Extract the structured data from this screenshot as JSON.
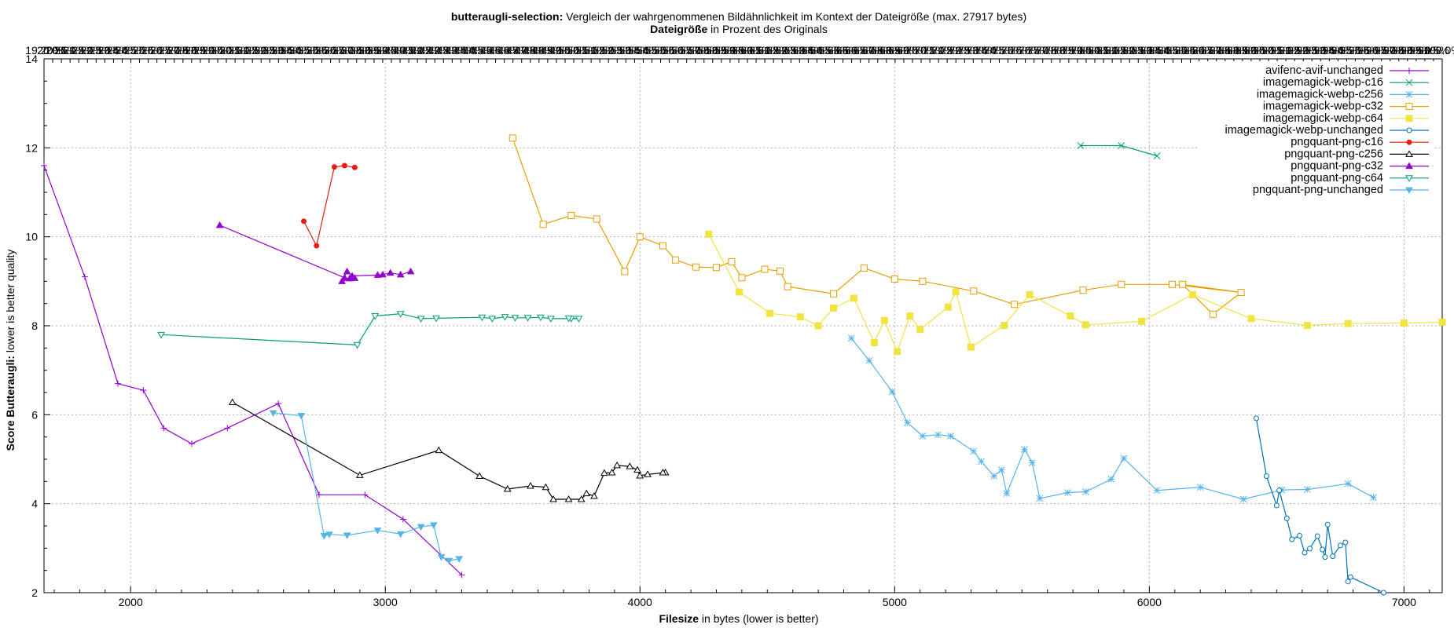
{
  "chart_data": {
    "type": "line",
    "title_bold": "butteraugli-selection:",
    "title_rest": " Vergleich der wahrgenommenen Bildähnlichkeit im Kontext der Dateigröße (max. 27917 bytes)",
    "x2label_bold": "Dateigröße",
    "x2label_rest": " in Prozent des Originals",
    "xlabel_bold": "Filesize",
    "xlabel_rest": " in bytes (lower is better)",
    "ylabel_bold": "Score Butteraugli:",
    "ylabel_rest": " lower is better quality",
    "xlim": [
      1660,
      7150
    ],
    "ylim": [
      2,
      14
    ],
    "x_ticks": [
      2000,
      3000,
      4000,
      5000,
      6000,
      7000
    ],
    "y_ticks": [
      2,
      4,
      6,
      8,
      10,
      12,
      14
    ],
    "x2_ticks": [
      "19.20%",
      "20.0%",
      "20.5%",
      "21.0%",
      "21.5%",
      "22.0%",
      "22.5%",
      "23.0%",
      "23.5%",
      "24.0%",
      "24.5%",
      "25.0%",
      "25.5%",
      "26.0%",
      "26.5%",
      "27.0%",
      "27.5%",
      "28.0%",
      "28.5%",
      "29.0%",
      "29.5%",
      "30.0%",
      "30.5%",
      "31.0%",
      "31.5%",
      "32.0%",
      "32.5%",
      "33.0%",
      "33.5%",
      "34.0%",
      "34.5%",
      "35.0%",
      "35.5%",
      "36.0%",
      "36.5%",
      "37.0%",
      "37.5%",
      "38.0%",
      "38.5%",
      "39.0%",
      "39.5%",
      "40.0%",
      "40.5%",
      "41.0%",
      "41.5%",
      "42.0%",
      "42.5%",
      "43.0%",
      "43.5%",
      "44.0%",
      "44.5%",
      "45.0%",
      "45.5%",
      "46.0%",
      "46.5%",
      "47.0%",
      "47.5%",
      "48.0%",
      "48.5%",
      "49.0%",
      "49.5%",
      "50.0%",
      "50.5%",
      "51.0%",
      "51.5%",
      "52.0%",
      "52.5%",
      "53.0%",
      "53.5%",
      "54.0%",
      "54.5%",
      "55.0%",
      "55.5%",
      "56.0%",
      "56.5%",
      "57.0%",
      "57.5%",
      "58.0%",
      "58.5%",
      "59.0%",
      "59.5%",
      "60.0%",
      "60.5%",
      "61.0%",
      "61.5%",
      "62.0%",
      "62.5%",
      "63.0%",
      "63.5%",
      "64.0%",
      "64.5%",
      "65.0%",
      "65.5%",
      "66.0%",
      "66.5%",
      "67.0%",
      "67.5%",
      "68.0%",
      "68.5%",
      "69.0%",
      "69.5%",
      "70.0%",
      "70.5%",
      "71.0%",
      "71.5%",
      "72.0%",
      "72.5%",
      "73.0%",
      "73.5%",
      "74.0%",
      "74.5%",
      "75.0%",
      "75.5%",
      "76.0%",
      "76.5%",
      "77.0%",
      "77.5%",
      "78.0%",
      "78.5%",
      "79.0%",
      "79.5%",
      "80.0%",
      "80.5%",
      "81.0%",
      "81.5%",
      "82.0%",
      "82.5%",
      "83.0%",
      "83.5%",
      "84.0%",
      "84.5%",
      "85.0%",
      "85.5%",
      "86.0%",
      "86.5%",
      "87.0%",
      "87.5%",
      "88.0%",
      "88.5%",
      "89.0%",
      "89.5%",
      "90.0%",
      "90.5%",
      "91.0%",
      "91.5%",
      "92.0%",
      "92.5%",
      "93.0%",
      "93.5%",
      "94.0%",
      "94.5%",
      "95.0%",
      "95.5%",
      "96.0%",
      "96.5%",
      "97.0%",
      "97.5%",
      "98.0%",
      "98.5%",
      "99.0%",
      "99.5%",
      "100.0%"
    ],
    "grid": true,
    "legend_position": "top-right",
    "series": [
      {
        "name": "avifenc-avif-unchanged",
        "color": "#9400d3",
        "marker": "plus",
        "points": [
          [
            1660,
            11.6
          ],
          [
            1820,
            9.1
          ],
          [
            1950,
            6.7
          ],
          [
            2050,
            6.55
          ],
          [
            2130,
            5.7
          ],
          [
            2240,
            5.35
          ],
          [
            2380,
            5.7
          ],
          [
            2580,
            6.25
          ],
          [
            2740,
            4.2
          ],
          [
            2920,
            4.2
          ],
          [
            3070,
            3.65
          ],
          [
            3300,
            2.4
          ]
        ]
      },
      {
        "name": "imagemagick-webp-c16",
        "color": "#009e73",
        "marker": "cross",
        "points": [
          [
            5730,
            12.05
          ],
          [
            5890,
            12.05
          ],
          [
            6030,
            11.82
          ]
        ]
      },
      {
        "name": "imagemagick-webp-c256",
        "color": "#56b4e9",
        "marker": "star",
        "points": [
          [
            4830,
            7.72
          ],
          [
            4900,
            7.22
          ],
          [
            4990,
            6.52
          ],
          [
            5050,
            5.82
          ],
          [
            5110,
            5.52
          ],
          [
            5170,
            5.55
          ],
          [
            5220,
            5.52
          ],
          [
            5310,
            5.18
          ],
          [
            5340,
            4.95
          ],
          [
            5390,
            4.62
          ],
          [
            5420,
            4.76
          ],
          [
            5440,
            4.23
          ],
          [
            5510,
            5.22
          ],
          [
            5540,
            4.92
          ],
          [
            5570,
            4.12
          ],
          [
            5680,
            4.25
          ],
          [
            5750,
            4.27
          ],
          [
            5850,
            4.55
          ],
          [
            5900,
            5.02
          ],
          [
            6030,
            4.3
          ],
          [
            6200,
            4.37
          ],
          [
            6370,
            4.1
          ],
          [
            6520,
            4.31
          ],
          [
            6620,
            4.32
          ],
          [
            6780,
            4.45
          ],
          [
            6880,
            4.14
          ]
        ]
      },
      {
        "name": "imagemagick-webp-c32",
        "color": "#e69f00",
        "marker": "square",
        "points": [
          [
            3500,
            12.22
          ],
          [
            3620,
            10.28
          ],
          [
            3730,
            10.48
          ],
          [
            3830,
            10.4
          ],
          [
            3940,
            9.22
          ],
          [
            4000,
            10.0
          ],
          [
            4090,
            9.8
          ],
          [
            4140,
            9.48
          ],
          [
            4220,
            9.32
          ],
          [
            4300,
            9.31
          ],
          [
            4360,
            9.44
          ],
          [
            4400,
            9.08
          ],
          [
            4490,
            9.27
          ],
          [
            4550,
            9.23
          ],
          [
            4580,
            8.88
          ],
          [
            4760,
            8.72
          ],
          [
            4880,
            9.3
          ],
          [
            5000,
            9.05
          ],
          [
            5110,
            9.0
          ],
          [
            5310,
            8.78
          ],
          [
            5470,
            8.48
          ],
          [
            5740,
            8.8
          ],
          [
            5890,
            8.93
          ],
          [
            6090,
            8.93
          ],
          [
            6360,
            8.75
          ],
          [
            6130,
            8.93
          ],
          [
            6250,
            8.26
          ],
          [
            6360,
            8.75
          ]
        ]
      },
      {
        "name": "imagemagick-webp-c64",
        "color": "#f0e442",
        "marker": "filled-square",
        "points": [
          [
            4270,
            10.06
          ],
          [
            4390,
            8.76
          ],
          [
            4510,
            8.28
          ],
          [
            4630,
            8.2
          ],
          [
            4700,
            8.0
          ],
          [
            4760,
            8.4
          ],
          [
            4840,
            8.62
          ],
          [
            4920,
            7.62
          ],
          [
            4960,
            8.12
          ],
          [
            5010,
            7.42
          ],
          [
            5060,
            8.22
          ],
          [
            5100,
            7.92
          ],
          [
            5210,
            8.42
          ],
          [
            5240,
            8.76
          ],
          [
            5300,
            7.52
          ],
          [
            5430,
            8.01
          ],
          [
            5530,
            8.7
          ],
          [
            5690,
            8.22
          ],
          [
            5750,
            8.02
          ],
          [
            5970,
            8.1
          ],
          [
            6170,
            8.7
          ],
          [
            6400,
            8.16
          ],
          [
            6620,
            8.01
          ],
          [
            6780,
            8.05
          ],
          [
            7000,
            8.06
          ],
          [
            7150,
            8.08
          ]
        ]
      },
      {
        "name": "imagemagick-webp-unchanged",
        "color": "#0072b2",
        "marker": "circle",
        "points": [
          [
            6420,
            5.92
          ],
          [
            6460,
            4.62
          ],
          [
            6500,
            3.96
          ],
          [
            6510,
            4.3
          ],
          [
            6540,
            3.67
          ],
          [
            6560,
            3.2
          ],
          [
            6590,
            3.28
          ],
          [
            6610,
            2.9
          ],
          [
            6630,
            2.99
          ],
          [
            6660,
            3.27
          ],
          [
            6680,
            2.97
          ],
          [
            6690,
            2.8
          ],
          [
            6700,
            3.53
          ],
          [
            6720,
            2.82
          ],
          [
            6750,
            3.06
          ],
          [
            6770,
            3.13
          ],
          [
            6780,
            2.25
          ],
          [
            6790,
            2.35
          ],
          [
            6920,
            2.0
          ]
        ]
      },
      {
        "name": "pngquant-png-c16",
        "color": "#e51e10",
        "marker": "filled-circle",
        "points": [
          [
            2680,
            10.35
          ],
          [
            2730,
            9.8
          ],
          [
            2800,
            11.57
          ],
          [
            2840,
            11.6
          ],
          [
            2880,
            11.56
          ]
        ]
      },
      {
        "name": "pngquant-png-c256",
        "color": "#000000",
        "marker": "triangle",
        "points": [
          [
            2400,
            6.28
          ],
          [
            2900,
            4.64
          ],
          [
            3210,
            5.2
          ],
          [
            3370,
            4.62
          ],
          [
            3480,
            4.33
          ],
          [
            3570,
            4.4
          ],
          [
            3630,
            4.37
          ],
          [
            3660,
            4.1
          ],
          [
            3720,
            4.1
          ],
          [
            3770,
            4.1
          ],
          [
            3790,
            4.23
          ],
          [
            3820,
            4.17
          ],
          [
            3860,
            4.69
          ],
          [
            3890,
            4.7
          ],
          [
            3910,
            4.86
          ],
          [
            3960,
            4.84
          ],
          [
            3990,
            4.76
          ],
          [
            4000,
            4.63
          ],
          [
            4030,
            4.66
          ],
          [
            4100,
            4.7
          ],
          [
            4090,
            4.7
          ]
        ]
      },
      {
        "name": "pngquant-png-c32",
        "color": "#9400d3",
        "marker": "filled-triangle",
        "points": [
          [
            2350,
            10.26
          ],
          [
            2840,
            9.08
          ],
          [
            2860,
            9.06
          ],
          [
            2880,
            9.07
          ],
          [
            2830,
            9.0
          ],
          [
            2850,
            9.22
          ],
          [
            2870,
            9.12
          ],
          [
            2970,
            9.14
          ],
          [
            2990,
            9.15
          ],
          [
            3020,
            9.19
          ],
          [
            3060,
            9.15
          ],
          [
            3100,
            9.22
          ]
        ]
      },
      {
        "name": "pngquant-png-c64",
        "color": "#009e73",
        "marker": "triangle-down",
        "points": [
          [
            2120,
            7.8
          ],
          [
            2890,
            7.57
          ],
          [
            2960,
            8.22
          ],
          [
            3060,
            8.27
          ],
          [
            3140,
            8.16
          ],
          [
            3200,
            8.17
          ],
          [
            3380,
            8.19
          ],
          [
            3420,
            8.16
          ],
          [
            3470,
            8.2
          ],
          [
            3510,
            8.18
          ],
          [
            3560,
            8.18
          ],
          [
            3610,
            8.19
          ],
          [
            3650,
            8.16
          ],
          [
            3730,
            8.16
          ],
          [
            3760,
            8.16
          ],
          [
            3720,
            8.17
          ]
        ]
      },
      {
        "name": "pngquant-png-unchanged",
        "color": "#56b4e9",
        "marker": "filled-triangle-down",
        "points": [
          [
            2560,
            6.04
          ],
          [
            2670,
            5.98
          ],
          [
            2760,
            3.28
          ],
          [
            2780,
            3.31
          ],
          [
            2850,
            3.29
          ],
          [
            2970,
            3.4
          ],
          [
            3060,
            3.32
          ],
          [
            3140,
            3.48
          ],
          [
            3190,
            3.52
          ],
          [
            3220,
            2.8
          ],
          [
            3250,
            2.72
          ],
          [
            3290,
            2.76
          ]
        ]
      }
    ]
  }
}
